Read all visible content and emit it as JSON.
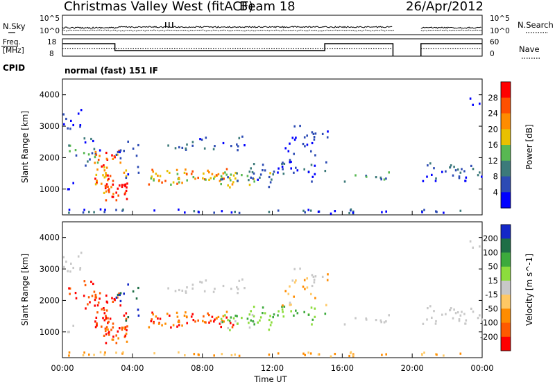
{
  "header": {
    "radar": "Christmas Valley West (fitACF)",
    "beam": "Beam 18",
    "date": "26/Apr/2012"
  },
  "noise_panel": {
    "left_label": "N.Sky",
    "right_label": "N.Search",
    "left_ticks": [
      "10^5",
      "10^0"
    ],
    "right_ticks": [
      "10^5",
      "10^0"
    ]
  },
  "freq_panel": {
    "left_label_line1": "Freq.",
    "left_label_line2": "[MHz]",
    "right_label": "Nave",
    "left_ticks": [
      "18",
      "8"
    ],
    "right_ticks": [
      "60",
      "0"
    ]
  },
  "cpid": {
    "label": "CPID",
    "program": "normal (fast) 151 IF"
  },
  "chart_data": [
    {
      "type": "heatmap",
      "name": "power",
      "ylabel": "Slant Range [km]",
      "xlabel": "Time UT",
      "ylim": [
        180,
        4500
      ],
      "y_ticks": [
        "1000",
        "2000",
        "3000",
        "4000"
      ],
      "x_ticks": [
        "00:00",
        "04:00",
        "08:00",
        "12:00",
        "16:00",
        "20:00",
        "00:00"
      ],
      "data_gap_hours": [
        18.9,
        20.5
      ],
      "colorbar": {
        "label": "Power [dB]",
        "ticks": [
          "4",
          "8",
          "12",
          "16",
          "20",
          "24",
          "28"
        ],
        "colors": [
          "#0000ff",
          "#2c4bb4",
          "#3c7a7a",
          "#58b852",
          "#e8c000",
          "#ff8c00",
          "#ff5000",
          "#ff0000"
        ]
      }
    },
    {
      "type": "heatmap",
      "name": "velocity",
      "ylabel": "Slant Range [km]",
      "xlabel": "Time UT",
      "ylim": [
        180,
        4500
      ],
      "y_ticks": [
        "1000",
        "2000",
        "3000",
        "4000"
      ],
      "x_ticks": [
        "00:00",
        "04:00",
        "08:00",
        "12:00",
        "16:00",
        "20:00",
        "00:00"
      ],
      "data_gap_hours": [
        18.9,
        20.5
      ],
      "colorbar": {
        "label": "Velocity [m s^-1]",
        "ticks": [
          "200",
          "100",
          "50",
          "15",
          "-15",
          "-50",
          "-100",
          "-200"
        ],
        "colors": [
          "#1428c8",
          "#1e6e46",
          "#3caa3c",
          "#8cdc3c",
          "#c8c8c8",
          "#ffc864",
          "#ff8c00",
          "#ff5a00",
          "#ff0000"
        ]
      }
    }
  ],
  "xlabel": "Time UT"
}
